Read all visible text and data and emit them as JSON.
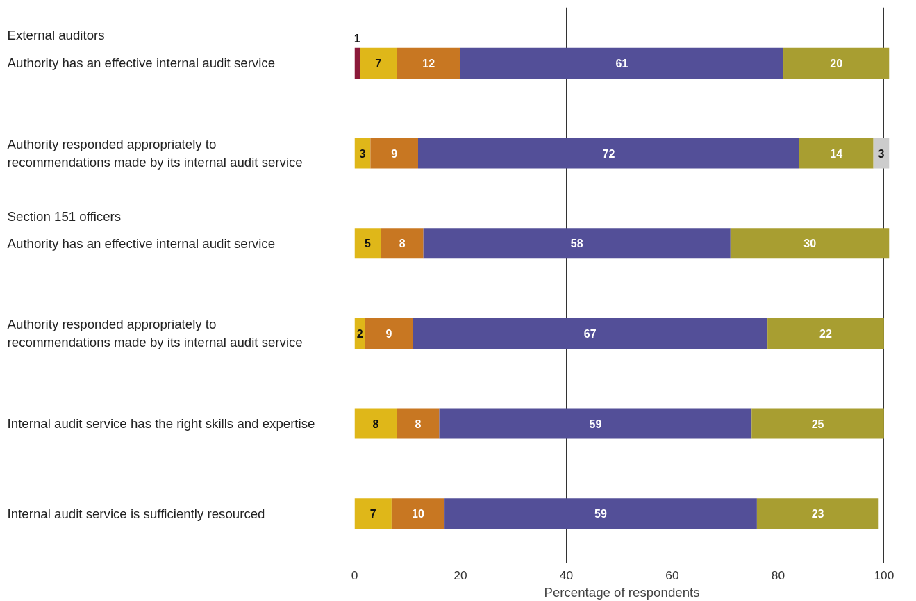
{
  "chart_data": {
    "type": "bar",
    "orientation": "horizontal",
    "stacked": true,
    "data_labels": true,
    "grid": "x",
    "xlabel": "Percentage of respondents",
    "categories": [
      "Authority has an effective internal audit service",
      "Authority responded appropriately to\nrecommendations made by its internal audit service",
      "Authority has an effective internal audit service",
      "Authority responded appropriately to\nrecommendations made by its internal audit service",
      "Internal audit service has the right skills and expertise",
      "Internal audit service is sufficiently resourced"
    ],
    "annotations": [
      "External auditors",
      "Section 151 officers"
    ],
    "xlim": [
      0,
      101
    ],
    "xticks": [
      0,
      20,
      40,
      60,
      80,
      100
    ],
    "series": [
      {
        "color": "#8b1a3a",
        "values": [
          1,
          null,
          null,
          null,
          null,
          null
        ]
      },
      {
        "color": "#dfb719",
        "values": [
          7,
          3,
          5,
          2,
          8,
          7
        ]
      },
      {
        "color": "#c87722",
        "values": [
          12,
          9,
          8,
          9,
          8,
          10
        ]
      },
      {
        "color": "#534f98",
        "values": [
          61,
          72,
          58,
          67,
          59,
          59
        ]
      },
      {
        "color": "#a89e31",
        "values": [
          20,
          14,
          30,
          22,
          25,
          23
        ]
      },
      {
        "color": "#cccccc",
        "values": [
          null,
          3,
          null,
          null,
          null,
          null
        ]
      }
    ]
  }
}
